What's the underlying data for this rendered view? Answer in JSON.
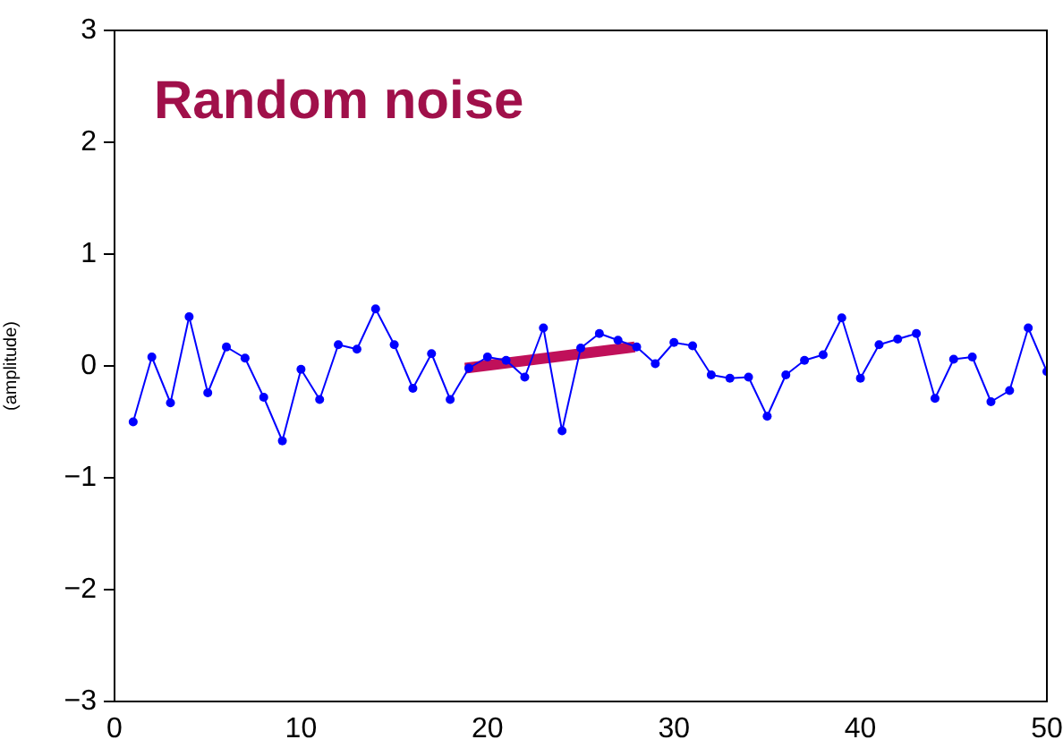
{
  "chart_data": {
    "type": "line",
    "title": "Random noise",
    "ylabel": "(amplitude)",
    "x": [
      1,
      2,
      3,
      4,
      5,
      6,
      7,
      8,
      9,
      10,
      11,
      12,
      13,
      14,
      15,
      16,
      17,
      18,
      19,
      20,
      21,
      22,
      23,
      24,
      25,
      26,
      27,
      28,
      29,
      30,
      31,
      32,
      33,
      34,
      35,
      36,
      37,
      38,
      39,
      40,
      41,
      42,
      43,
      44,
      45,
      46,
      47,
      48,
      49,
      50
    ],
    "series": [
      {
        "color": "#0000ff",
        "marker": "circle",
        "values": [
          -0.5,
          0.08,
          -0.33,
          0.44,
          -0.24,
          0.17,
          0.07,
          -0.28,
          -0.67,
          -0.03,
          -0.3,
          0.19,
          0.15,
          0.51,
          0.19,
          -0.2,
          0.11,
          -0.3,
          -0.02,
          0.08,
          0.05,
          -0.1,
          0.34,
          -0.58,
          0.16,
          0.29,
          0.23,
          0.17,
          0.02,
          0.21,
          0.18,
          -0.08,
          -0.11,
          -0.1,
          -0.45,
          -0.08,
          0.05,
          0.1,
          0.43,
          -0.11,
          0.19,
          0.24,
          0.29,
          -0.29,
          0.06,
          0.08,
          -0.32,
          -0.22,
          0.34,
          -0.05
        ]
      },
      {
        "type": "line",
        "color": "#c0105a",
        "marker": "none",
        "x": [
          18.8,
          27.9
        ],
        "values": [
          -0.02,
          0.17
        ]
      }
    ],
    "xlim": [
      0,
      50
    ],
    "xticks": [
      0,
      10,
      20,
      30,
      40,
      50
    ],
    "ylim": [
      -3,
      3
    ],
    "yticks": [
      -3,
      -2,
      -1,
      0,
      1,
      2,
      3
    ],
    "grid": false,
    "legend": false
  }
}
